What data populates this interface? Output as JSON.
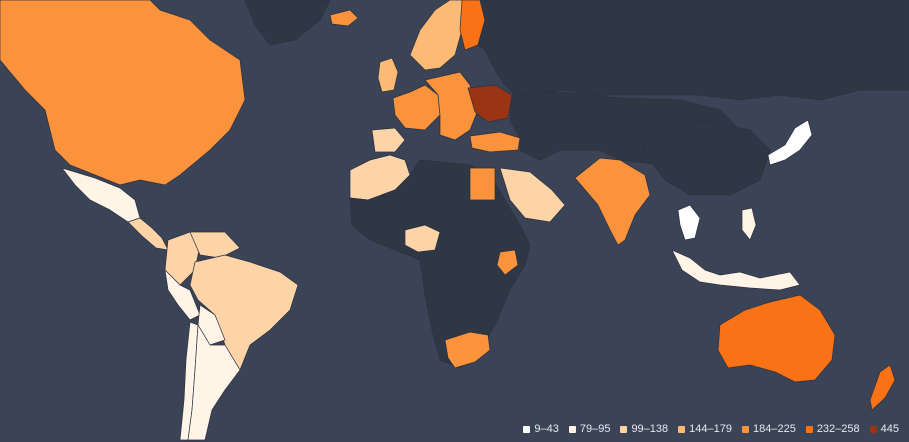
{
  "map": {
    "style": {
      "ocean": "#3b4356",
      "no_data": "#2f3644",
      "border": "#2b3140"
    },
    "legend": [
      {
        "label": "9–43",
        "color": "#ffffff"
      },
      {
        "label": "79–95",
        "color": "#fff4e6"
      },
      {
        "label": "99–138",
        "color": "#fdd4a8"
      },
      {
        "label": "144–179",
        "color": "#fdba74"
      },
      {
        "label": "184–225",
        "color": "#fb923c"
      },
      {
        "label": "232–258",
        "color": "#f97316"
      },
      {
        "label": "445",
        "color": "#9a3412"
      }
    ],
    "regions": [
      {
        "name": "North America",
        "bucket": 4
      },
      {
        "name": "Mexico",
        "bucket": 1
      },
      {
        "name": "Central America",
        "bucket": 2
      },
      {
        "name": "Colombia",
        "bucket": 2
      },
      {
        "name": "Venezuela",
        "bucket": 2
      },
      {
        "name": "Brazil",
        "bucket": 2
      },
      {
        "name": "Peru",
        "bucket": 1
      },
      {
        "name": "Bolivia",
        "bucket": 1
      },
      {
        "name": "Chile",
        "bucket": 1
      },
      {
        "name": "Argentina",
        "bucket": 1
      },
      {
        "name": "Greenland",
        "bucket": null
      },
      {
        "name": "Iceland",
        "bucket": 4
      },
      {
        "name": "Scandinavia",
        "bucket": 3
      },
      {
        "name": "Finland",
        "bucket": 5
      },
      {
        "name": "UK",
        "bucket": 3
      },
      {
        "name": "Western Europe",
        "bucket": 4
      },
      {
        "name": "Central Europe",
        "bucket": 4
      },
      {
        "name": "Iberia",
        "bucket": 2
      },
      {
        "name": "Ukraine",
        "bucket": 6
      },
      {
        "name": "Russia",
        "bucket": null
      },
      {
        "name": "Turkey",
        "bucket": 4
      },
      {
        "name": "North Africa",
        "bucket": 2
      },
      {
        "name": "Egypt",
        "bucket": 4
      },
      {
        "name": "Saudi Arabia",
        "bucket": 2
      },
      {
        "name": "India",
        "bucket": 4
      },
      {
        "name": "Nigeria",
        "bucket": 2
      },
      {
        "name": "Kenya",
        "bucket": 4
      },
      {
        "name": "South Africa",
        "bucket": 4
      },
      {
        "name": "Thailand",
        "bucket": 0
      },
      {
        "name": "Philippines",
        "bucket": 1
      },
      {
        "name": "Indonesia",
        "bucket": 1
      },
      {
        "name": "Japan",
        "bucket": 0
      },
      {
        "name": "Australia",
        "bucket": 5
      },
      {
        "name": "New Zealand",
        "bucket": 5
      }
    ]
  }
}
